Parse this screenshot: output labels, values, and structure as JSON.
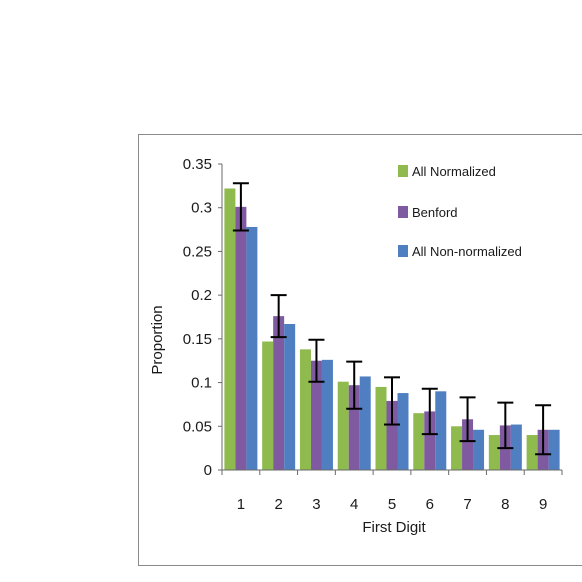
{
  "chart_data": {
    "type": "bar",
    "categories": [
      "1",
      "2",
      "3",
      "4",
      "5",
      "6",
      "7",
      "8",
      "9"
    ],
    "series": [
      {
        "name": "All Normalized",
        "color": "#8fbb4e",
        "values": [
          0.322,
          0.147,
          0.138,
          0.101,
          0.095,
          0.065,
          0.05,
          0.04,
          0.04
        ]
      },
      {
        "name": "Benford",
        "color": "#7f5aa0",
        "values": [
          0.301,
          0.176,
          0.125,
          0.097,
          0.079,
          0.067,
          0.058,
          0.051,
          0.046
        ],
        "error": [
          0.027,
          0.024,
          0.024,
          0.027,
          0.027,
          0.026,
          0.025,
          0.026,
          0.028
        ]
      },
      {
        "name": "All Non-normalized",
        "color": "#4f7fc0",
        "values": [
          0.278,
          0.167,
          0.126,
          0.107,
          0.088,
          0.09,
          0.046,
          0.052,
          0.046
        ]
      }
    ],
    "xlabel": "First Digit",
    "ylabel": "Proportion",
    "ylim": [
      0,
      0.35
    ],
    "yticks": [
      "0",
      "0.05",
      "0.1",
      "0.15",
      "0.2",
      "0.25",
      "0.3",
      "0.35"
    ],
    "grid": false,
    "legend": "top-right"
  }
}
